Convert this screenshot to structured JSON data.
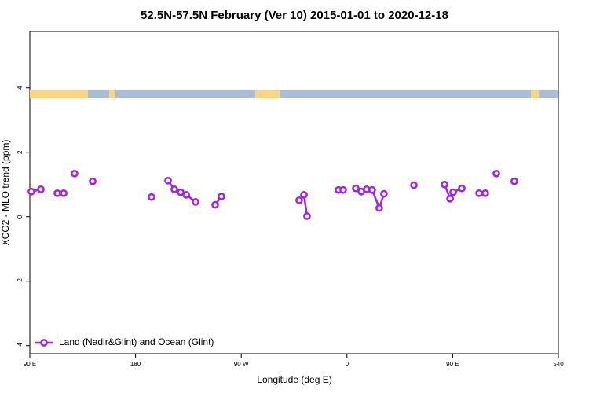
{
  "chart_data": {
    "type": "line",
    "title": "52.5N-57.5N February (Ver 10)   2015-01-01 to 2020-12-18",
    "x_label": "Longitude (deg E)",
    "y_label": "XCO2 - MLO trend (ppm)",
    "x": [
      91.3,
      99.4,
      null,
      113.4,
      118.8,
      null,
      128.1,
      null,
      143.5,
      null,
      193.6,
      null,
      207.7,
      213.0,
      218.4,
      223.1,
      231.1,
      null,
      247.8,
      253.1,
      null,
      319.3,
      323.4,
      326.0,
      null,
      352.8,
      356.8,
      null,
      367.5,
      372.2,
      376.8,
      381.5,
      387.5,
      391.5,
      null,
      417.0,
      null,
      443.1,
      447.8,
      450.4,
      457.8,
      null,
      472.5,
      477.8,
      null,
      487.2,
      null,
      502.5
    ],
    "series": [
      {
        "name": "Land (Nadir&Glint) and Ocean (Glint)",
        "color": "#a020f0",
        "values": [
          0.78,
          0.85,
          null,
          0.73,
          0.73,
          null,
          1.34,
          null,
          1.1,
          null,
          0.61,
          null,
          1.12,
          0.85,
          0.76,
          0.68,
          0.46,
          null,
          0.37,
          0.63,
          null,
          0.51,
          0.68,
          0.02,
          null,
          0.83,
          0.83,
          null,
          0.88,
          0.78,
          0.85,
          0.83,
          0.27,
          0.71,
          null,
          0.98,
          null,
          1.0,
          0.56,
          0.76,
          0.88,
          null,
          0.73,
          0.73,
          null,
          1.34,
          null,
          1.1
        ]
      }
    ],
    "xlim": [
      90,
      540
    ],
    "xticks": [
      {
        "value": 90,
        "label": "90 E"
      },
      180,
      {
        "value": 270,
        "label": "90 W"
      },
      {
        "value": 360,
        "label": "0"
      },
      {
        "value": 450,
        "label": "90 E"
      },
      540
    ],
    "ylim": [
      -4.25,
      5.75
    ],
    "yticks": [
      -4,
      -2,
      0,
      2,
      4
    ],
    "legend": "bottom-left"
  }
}
